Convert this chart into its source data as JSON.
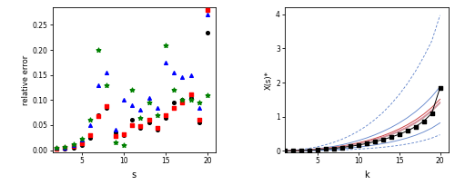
{
  "left": {
    "xlabel": "s",
    "ylabel": "relative error",
    "ylim": [
      -0.005,
      0.285
    ],
    "yticks": [
      0.0,
      0.05,
      0.1,
      0.15,
      0.2,
      0.25
    ],
    "xlim": [
      1.5,
      21
    ],
    "xticks": [
      5,
      10,
      15,
      20
    ],
    "black_circles": {
      "x": [
        2,
        3,
        4,
        5,
        6,
        7,
        8,
        9,
        10,
        11,
        12,
        13,
        14,
        15,
        16,
        17,
        18,
        19,
        20
      ],
      "y": [
        0.002,
        0.003,
        0.005,
        0.01,
        0.025,
        0.07,
        0.085,
        0.035,
        0.03,
        0.06,
        0.045,
        0.055,
        0.04,
        0.065,
        0.095,
        0.1,
        0.105,
        0.055,
        0.235
      ]
    },
    "red_squares": {
      "x": [
        2,
        3,
        4,
        5,
        6,
        7,
        8,
        9,
        10,
        11,
        12,
        13,
        14,
        15,
        16,
        17,
        18,
        19,
        20
      ],
      "y": [
        0.003,
        0.004,
        0.008,
        0.013,
        0.03,
        0.068,
        0.088,
        0.028,
        0.032,
        0.05,
        0.048,
        0.06,
        0.045,
        0.07,
        0.085,
        0.095,
        0.112,
        0.06,
        0.28
      ]
    },
    "blue_triangles": {
      "x": [
        2,
        3,
        4,
        5,
        6,
        7,
        8,
        9,
        10,
        11,
        12,
        13,
        14,
        15,
        16,
        17,
        18,
        19,
        20
      ],
      "y": [
        0.004,
        0.005,
        0.01,
        0.02,
        0.05,
        0.13,
        0.155,
        0.04,
        0.1,
        0.09,
        0.08,
        0.105,
        0.085,
        0.175,
        0.155,
        0.145,
        0.15,
        0.085,
        0.27
      ]
    },
    "green_stars": {
      "x": [
        2,
        3,
        4,
        5,
        6,
        7,
        8,
        9,
        10,
        11,
        12,
        13,
        14,
        15,
        16,
        17,
        18,
        19,
        20
      ],
      "y": [
        0.005,
        0.006,
        0.012,
        0.022,
        0.06,
        0.2,
        0.13,
        0.015,
        0.01,
        0.12,
        0.065,
        0.095,
        0.07,
        0.21,
        0.12,
        0.1,
        0.1,
        0.095,
        0.11
      ]
    }
  },
  "right": {
    "xlabel": "k",
    "ylabel": "X(s)*",
    "ylim": [
      -0.05,
      4.2
    ],
    "yticks": [
      0,
      1,
      2,
      3,
      4
    ],
    "xlim": [
      1,
      21
    ],
    "xticks": [
      5,
      10,
      15,
      20
    ],
    "k_vals": [
      1,
      2,
      3,
      4,
      5,
      6,
      7,
      8,
      9,
      10,
      11,
      12,
      13,
      14,
      15,
      16,
      17,
      18,
      19,
      20
    ],
    "obs_points": [
      0.0,
      0.005,
      0.012,
      0.022,
      0.035,
      0.052,
      0.073,
      0.1,
      0.132,
      0.17,
      0.215,
      0.268,
      0.33,
      0.402,
      0.485,
      0.585,
      0.71,
      0.87,
      1.1,
      1.85
    ],
    "pred_med_known": [
      0.0,
      0.006,
      0.014,
      0.026,
      0.042,
      0.062,
      0.087,
      0.118,
      0.156,
      0.2,
      0.252,
      0.313,
      0.383,
      0.465,
      0.56,
      0.672,
      0.805,
      0.963,
      1.155,
      1.395
    ],
    "pred_mean_known": [
      0.0,
      0.007,
      0.016,
      0.029,
      0.046,
      0.068,
      0.095,
      0.128,
      0.168,
      0.215,
      0.27,
      0.334,
      0.408,
      0.493,
      0.592,
      0.707,
      0.843,
      1.003,
      1.195,
      1.43
    ],
    "pred_med_unk": [
      0.0,
      0.006,
      0.015,
      0.027,
      0.044,
      0.065,
      0.091,
      0.123,
      0.162,
      0.208,
      0.261,
      0.323,
      0.395,
      0.479,
      0.575,
      0.689,
      0.823,
      0.982,
      1.173,
      1.408
    ],
    "pred_mean_unk": [
      0.0,
      0.008,
      0.018,
      0.032,
      0.051,
      0.075,
      0.105,
      0.141,
      0.184,
      0.235,
      0.295,
      0.364,
      0.443,
      0.535,
      0.641,
      0.763,
      0.906,
      1.074,
      1.273,
      1.512
    ],
    "ci50_upper": [
      0.0,
      0.01,
      0.023,
      0.041,
      0.065,
      0.096,
      0.134,
      0.18,
      0.236,
      0.302,
      0.378,
      0.467,
      0.568,
      0.684,
      0.817,
      0.97,
      1.146,
      1.35,
      1.59,
      1.875
    ],
    "ci50_lower": [
      0.0,
      0.003,
      0.008,
      0.014,
      0.023,
      0.034,
      0.048,
      0.065,
      0.086,
      0.111,
      0.14,
      0.174,
      0.214,
      0.26,
      0.315,
      0.38,
      0.458,
      0.553,
      0.67,
      0.82
    ],
    "ci90_upper": [
      0.0,
      0.018,
      0.042,
      0.076,
      0.121,
      0.179,
      0.252,
      0.34,
      0.448,
      0.577,
      0.73,
      0.91,
      1.121,
      1.365,
      1.645,
      1.965,
      2.33,
      2.75,
      3.22,
      3.97
    ],
    "ci90_lower": [
      0.0,
      0.001,
      0.003,
      0.006,
      0.01,
      0.015,
      0.022,
      0.03,
      0.04,
      0.053,
      0.068,
      0.086,
      0.107,
      0.133,
      0.164,
      0.202,
      0.248,
      0.305,
      0.377,
      0.472
    ]
  }
}
